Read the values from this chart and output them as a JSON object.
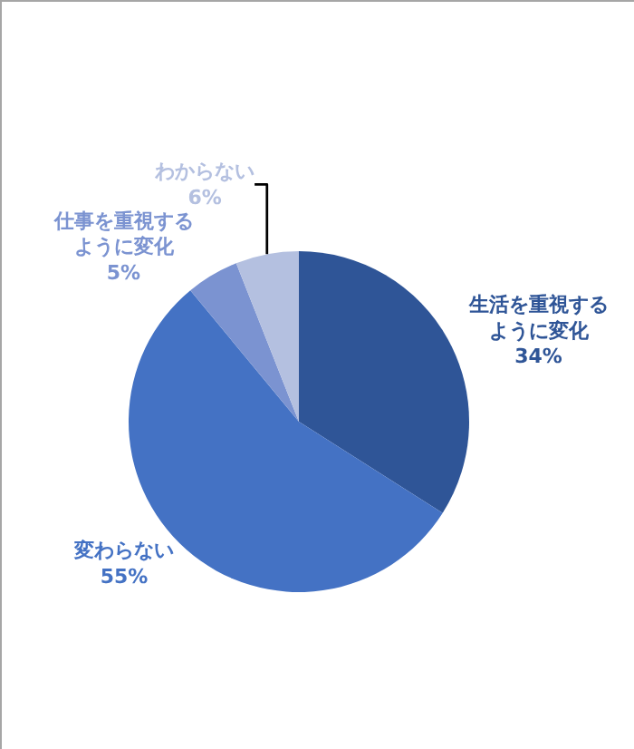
{
  "chart_data": {
    "type": "pie",
    "categories": [
      "生活を重視するように変化",
      "変わらない",
      "仕事を重視するように変化",
      "わからない"
    ],
    "values": [
      34,
      55,
      5,
      6
    ],
    "colors": [
      "#2f5597",
      "#4472c4",
      "#7b93d1",
      "#b4c0e0"
    ],
    "value_labels": [
      "34%",
      "55%",
      "5%",
      "6%"
    ],
    "legend": false
  }
}
